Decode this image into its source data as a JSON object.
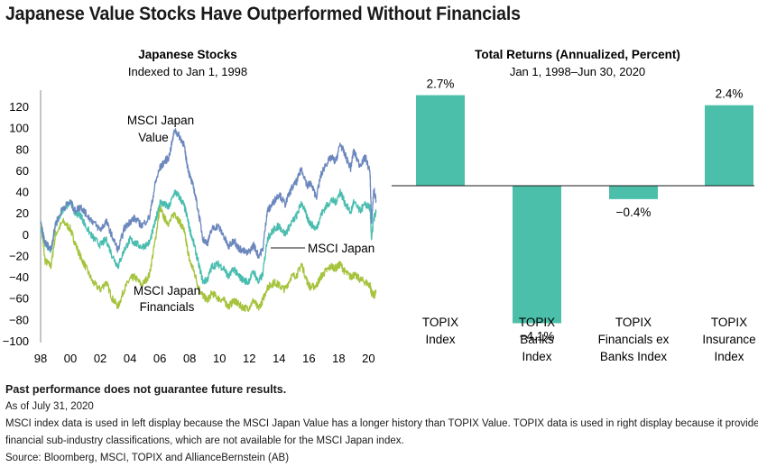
{
  "title": "Japanese Value Stocks Have Outperformed Without Financials",
  "chart_data": [
    {
      "type": "line",
      "title": "Japanese Stocks",
      "subtitle": "Indexed to Jan 1, 1998",
      "xlabel": "",
      "ylabel": "",
      "xlim": [
        1998,
        2020.58
      ],
      "ylim": [
        -100,
        120
      ],
      "y_ticks": [
        120,
        100,
        80,
        60,
        40,
        20,
        0,
        -20,
        -40,
        -60,
        -80,
        -100
      ],
      "x_ticks": [
        1998,
        2000,
        2002,
        2004,
        2006,
        2008,
        2010,
        2012,
        2014,
        2016,
        2018,
        2020
      ],
      "x_tick_labels": [
        "98",
        "00",
        "02",
        "04",
        "06",
        "08",
        "10",
        "12",
        "14",
        "16",
        "18",
        "20"
      ],
      "series": [
        {
          "name": "MSCI Japan Value",
          "label_lines": [
            "MSCI Japan",
            "Value"
          ],
          "color": "#6b87bd",
          "x": [
            1998,
            1998.3,
            1998.7,
            1999.0,
            1999.5,
            2000.0,
            2000.3,
            2000.7,
            2001.0,
            2001.5,
            2002.0,
            2002.4,
            2002.8,
            2003.2,
            2003.6,
            2004.0,
            2004.3,
            2004.8,
            2005.3,
            2005.7,
            2006.0,
            2006.3,
            2006.6,
            2007.0,
            2007.3,
            2007.6,
            2007.8,
            2008.0,
            2008.3,
            2008.6,
            2008.9,
            2009.2,
            2009.5,
            2009.9,
            2010.3,
            2010.6,
            2011.0,
            2011.2,
            2011.5,
            2011.9,
            2012.3,
            2012.6,
            2012.9,
            2013.2,
            2013.4,
            2013.7,
            2014.0,
            2014.4,
            2014.8,
            2015.2,
            2015.5,
            2015.9,
            2016.1,
            2016.5,
            2016.8,
            2017.1,
            2017.5,
            2017.8,
            2018.1,
            2018.4,
            2018.8,
            2019.0,
            2019.4,
            2019.8,
            2020.1,
            2020.2,
            2020.35,
            2020.5
          ],
          "values": [
            10,
            -8,
            -14,
            10,
            25,
            30,
            22,
            26,
            20,
            12,
            4,
            12,
            -2,
            -15,
            5,
            12,
            15,
            8,
            16,
            48,
            62,
            68,
            72,
            98,
            92,
            85,
            68,
            55,
            42,
            20,
            -5,
            -8,
            5,
            8,
            -2,
            -12,
            -5,
            -12,
            -15,
            -18,
            -10,
            -20,
            -15,
            22,
            25,
            32,
            38,
            28,
            42,
            50,
            62,
            45,
            48,
            35,
            55,
            65,
            72,
            68,
            85,
            75,
            62,
            78,
            65,
            72,
            58,
            10,
            42,
            32
          ]
        },
        {
          "name": "MSCI Japan",
          "label_lines": [
            "MSCI Japan"
          ],
          "color": "#4bbdb0",
          "x": [
            1998,
            1998.3,
            1998.7,
            1999.0,
            1999.5,
            2000.0,
            2000.3,
            2000.7,
            2001.0,
            2001.5,
            2002.0,
            2002.4,
            2002.8,
            2003.2,
            2003.6,
            2004.0,
            2004.3,
            2004.8,
            2005.3,
            2005.7,
            2006.0,
            2006.3,
            2006.6,
            2007.0,
            2007.3,
            2007.6,
            2007.8,
            2008.0,
            2008.3,
            2008.6,
            2008.9,
            2009.2,
            2009.5,
            2009.9,
            2010.3,
            2010.6,
            2011.0,
            2011.2,
            2011.5,
            2011.9,
            2012.3,
            2012.6,
            2012.9,
            2013.2,
            2013.4,
            2013.7,
            2014.0,
            2014.4,
            2014.8,
            2015.2,
            2015.5,
            2015.9,
            2016.1,
            2016.5,
            2016.8,
            2017.1,
            2017.5,
            2017.8,
            2018.1,
            2018.4,
            2018.8,
            2019.0,
            2019.4,
            2019.8,
            2020.1,
            2020.2,
            2020.35,
            2020.5
          ],
          "values": [
            5,
            -8,
            -16,
            8,
            22,
            32,
            20,
            18,
            8,
            -3,
            -10,
            -5,
            -20,
            -30,
            -15,
            -5,
            -8,
            -12,
            -8,
            12,
            30,
            28,
            25,
            40,
            35,
            28,
            18,
            5,
            -10,
            -28,
            -45,
            -42,
            -30,
            -28,
            -32,
            -40,
            -32,
            -38,
            -42,
            -45,
            -35,
            -45,
            -38,
            -5,
            0,
            5,
            8,
            0,
            10,
            18,
            30,
            15,
            10,
            5,
            18,
            25,
            32,
            30,
            40,
            30,
            20,
            30,
            22,
            28,
            25,
            -5,
            15,
            20
          ]
        },
        {
          "name": "MSCI Japan Financials",
          "label_lines": [
            "MSCI Japan",
            "Financials"
          ],
          "color": "#a5c33c",
          "x": [
            1998,
            1998.3,
            1998.7,
            1999.0,
            1999.5,
            2000.0,
            2000.3,
            2000.7,
            2001.0,
            2001.5,
            2002.0,
            2002.4,
            2002.8,
            2003.2,
            2003.6,
            2004.0,
            2004.3,
            2004.8,
            2005.3,
            2005.7,
            2006.0,
            2006.3,
            2006.6,
            2007.0,
            2007.3,
            2007.6,
            2007.8,
            2008.0,
            2008.3,
            2008.6,
            2008.9,
            2009.2,
            2009.5,
            2009.9,
            2010.3,
            2010.6,
            2011.0,
            2011.2,
            2011.5,
            2011.9,
            2012.3,
            2012.6,
            2012.9,
            2013.2,
            2013.4,
            2013.7,
            2014.0,
            2014.4,
            2014.8,
            2015.2,
            2015.5,
            2015.9,
            2016.1,
            2016.5,
            2016.8,
            2017.1,
            2017.5,
            2017.8,
            2018.1,
            2018.4,
            2018.8,
            2019.0,
            2019.4,
            2019.8,
            2020.1,
            2020.2,
            2020.35,
            2020.5
          ],
          "values": [
            12,
            -25,
            -30,
            0,
            12,
            5,
            -8,
            -22,
            -30,
            -45,
            -52,
            -45,
            -60,
            -68,
            -52,
            -42,
            -40,
            -48,
            -38,
            -5,
            25,
            15,
            10,
            20,
            12,
            5,
            -10,
            -25,
            -35,
            -50,
            -58,
            -62,
            -55,
            -60,
            -62,
            -68,
            -62,
            -65,
            -68,
            -70,
            -62,
            -70,
            -62,
            -50,
            -48,
            -45,
            -48,
            -52,
            -40,
            -38,
            -28,
            -45,
            -50,
            -48,
            -40,
            -35,
            -30,
            -32,
            -28,
            -35,
            -40,
            -38,
            -42,
            -45,
            -48,
            -55,
            -58,
            -55
          ]
        }
      ]
    },
    {
      "type": "bar",
      "title": "Total Returns (Annualized, Percent)",
      "subtitle": "Jan 1, 1998–Jun 30, 2020",
      "color": "#4bbfa9",
      "categories": [
        "TOPIX Index",
        "TOPIX Banks Index",
        "TOPIX Financials ex Banks Index",
        "TOPIX Insurance Index"
      ],
      "category_lines": [
        [
          "TOPIX",
          "Index"
        ],
        [
          "TOPIX",
          "Banks",
          "Index"
        ],
        [
          "TOPIX",
          "Financials ex",
          "Banks Index"
        ],
        [
          "TOPIX",
          "Insurance",
          "Index"
        ]
      ],
      "values": [
        2.7,
        -4.1,
        -0.4,
        2.4
      ],
      "data_labels": [
        "2.7%",
        "−4.1%",
        "−0.4%",
        "2.4%"
      ]
    }
  ],
  "footnotes": {
    "disclaimer": "Past performance does not guarantee future results.",
    "as_of": "As of July 31, 2020",
    "note_line1": "MSCI index data is used in left display because the MSCI Japan Value has a longer history than TOPIX Value. TOPIX data is used in right display because it provides",
    "note_line2": "financial sub-industry classifications, which are not available for the MSCI Japan index.",
    "source": "Source: Bloomberg, MSCI, TOPIX and AllianceBernstein (AB)"
  }
}
